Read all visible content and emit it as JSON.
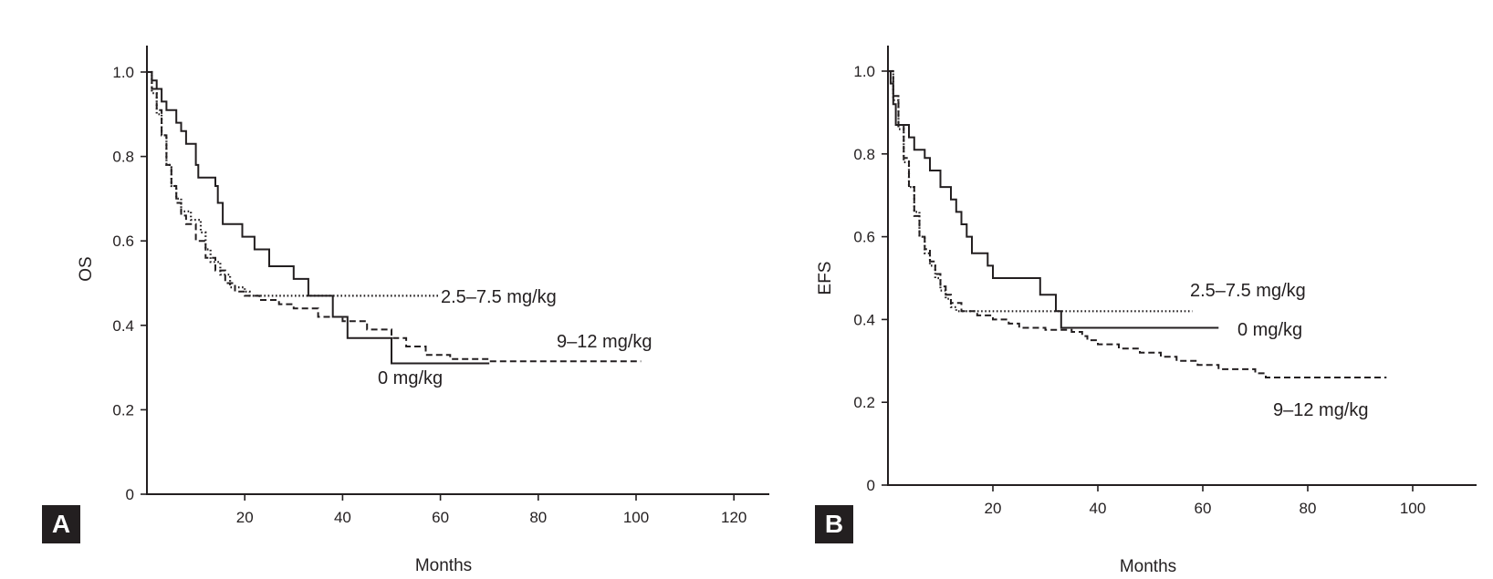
{
  "chart_data": [
    {
      "panel": "A",
      "type": "line",
      "xlabel": "Months",
      "ylabel": "OS",
      "xlim": [
        0,
        125
      ],
      "ylim": [
        0,
        1.0
      ],
      "xticks": [
        20,
        40,
        60,
        80,
        100,
        120
      ],
      "yticks": [
        0,
        0.2,
        0.4,
        0.6,
        0.8,
        1.0
      ],
      "ytick_labels": [
        "0",
        "0.2",
        "0.4",
        "0.6",
        "0.8",
        "1.0"
      ],
      "series": [
        {
          "name": "0 mg/kg",
          "style": "solid",
          "points": [
            [
              0,
              1.0
            ],
            [
              1,
              0.98
            ],
            [
              2,
              0.96
            ],
            [
              3,
              0.93
            ],
            [
              4,
              0.91
            ],
            [
              6,
              0.88
            ],
            [
              7,
              0.86
            ],
            [
              8,
              0.83
            ],
            [
              10,
              0.78
            ],
            [
              10.5,
              0.75
            ],
            [
              14,
              0.73
            ],
            [
              14.5,
              0.69
            ],
            [
              15.5,
              0.64
            ],
            [
              19.5,
              0.61
            ],
            [
              22,
              0.58
            ],
            [
              25,
              0.54
            ],
            [
              30,
              0.51
            ],
            [
              33,
              0.47
            ],
            [
              38,
              0.42
            ],
            [
              41,
              0.37
            ],
            [
              50,
              0.31
            ],
            [
              70,
              0.31
            ]
          ]
        },
        {
          "name": "2.5–7.5 mg/kg",
          "style": "dotted",
          "points": [
            [
              0,
              1.0
            ],
            [
              1,
              0.95
            ],
            [
              2,
              0.9
            ],
            [
              3,
              0.85
            ],
            [
              4,
              0.78
            ],
            [
              5,
              0.73
            ],
            [
              6,
              0.7
            ],
            [
              7,
              0.67
            ],
            [
              9,
              0.65
            ],
            [
              11,
              0.62
            ],
            [
              12,
              0.58
            ],
            [
              13,
              0.55
            ],
            [
              15,
              0.52
            ],
            [
              17,
              0.49
            ],
            [
              20,
              0.48
            ],
            [
              21,
              0.47
            ],
            [
              60,
              0.47
            ]
          ]
        },
        {
          "name": "9–12 mg/kg",
          "style": "dashed",
          "points": [
            [
              0,
              1.0
            ],
            [
              1,
              0.96
            ],
            [
              2,
              0.91
            ],
            [
              3,
              0.85
            ],
            [
              4,
              0.78
            ],
            [
              5,
              0.73
            ],
            [
              6,
              0.69
            ],
            [
              7,
              0.66
            ],
            [
              8,
              0.64
            ],
            [
              10,
              0.6
            ],
            [
              12,
              0.56
            ],
            [
              14,
              0.53
            ],
            [
              16,
              0.5
            ],
            [
              18,
              0.48
            ],
            [
              20,
              0.47
            ],
            [
              23,
              0.46
            ],
            [
              27,
              0.45
            ],
            [
              30,
              0.44
            ],
            [
              35,
              0.42
            ],
            [
              40,
              0.41
            ],
            [
              45,
              0.39
            ],
            [
              50,
              0.37
            ],
            [
              53,
              0.35
            ],
            [
              57,
              0.33
            ],
            [
              62,
              0.32
            ],
            [
              70,
              0.315
            ],
            [
              101,
              0.315
            ]
          ]
        }
      ],
      "annotations": [
        "2.5–7.5 mg/kg",
        "9–12 mg/kg",
        "0 mg/kg"
      ]
    },
    {
      "panel": "B",
      "type": "line",
      "xlabel": "Months",
      "ylabel": "EFS",
      "xlim": [
        0,
        110
      ],
      "ylim": [
        0,
        1.0
      ],
      "xticks": [
        20,
        40,
        60,
        80,
        100
      ],
      "yticks": [
        0,
        0.2,
        0.4,
        0.6,
        0.8,
        1.0
      ],
      "ytick_labels": [
        "0",
        "0.2",
        "0.4",
        "0.6",
        "0.8",
        "1.0"
      ],
      "series": [
        {
          "name": "0 mg/kg",
          "style": "solid",
          "points": [
            [
              0,
              1.0
            ],
            [
              0.5,
              0.97
            ],
            [
              1,
              0.92
            ],
            [
              1.5,
              0.87
            ],
            [
              4,
              0.84
            ],
            [
              5,
              0.81
            ],
            [
              7,
              0.79
            ],
            [
              8,
              0.76
            ],
            [
              10,
              0.72
            ],
            [
              12,
              0.69
            ],
            [
              13,
              0.66
            ],
            [
              14,
              0.63
            ],
            [
              15,
              0.6
            ],
            [
              16,
              0.56
            ],
            [
              19,
              0.53
            ],
            [
              20,
              0.5
            ],
            [
              25,
              0.5
            ],
            [
              29,
              0.46
            ],
            [
              32,
              0.42
            ],
            [
              33,
              0.38
            ],
            [
              63,
              0.38
            ]
          ]
        },
        {
          "name": "2.5–7.5 mg/kg",
          "style": "dotted",
          "points": [
            [
              0,
              1.0
            ],
            [
              1,
              0.93
            ],
            [
              2,
              0.86
            ],
            [
              3,
              0.78
            ],
            [
              4,
              0.72
            ],
            [
              5,
              0.66
            ],
            [
              6,
              0.6
            ],
            [
              7,
              0.56
            ],
            [
              8,
              0.53
            ],
            [
              9,
              0.5
            ],
            [
              10,
              0.47
            ],
            [
              11,
              0.45
            ],
            [
              12,
              0.43
            ],
            [
              13,
              0.42
            ],
            [
              58,
              0.42
            ]
          ]
        },
        {
          "name": "9–12 mg/kg",
          "style": "dashed",
          "points": [
            [
              0,
              1.0
            ],
            [
              1,
              0.94
            ],
            [
              2,
              0.87
            ],
            [
              3,
              0.79
            ],
            [
              4,
              0.72
            ],
            [
              5,
              0.65
            ],
            [
              6,
              0.6
            ],
            [
              7,
              0.57
            ],
            [
              8,
              0.54
            ],
            [
              9,
              0.51
            ],
            [
              10,
              0.48
            ],
            [
              11,
              0.46
            ],
            [
              12,
              0.44
            ],
            [
              14,
              0.42
            ],
            [
              17,
              0.41
            ],
            [
              20,
              0.4
            ],
            [
              23,
              0.39
            ],
            [
              25,
              0.38
            ],
            [
              30,
              0.375
            ],
            [
              35,
              0.37
            ],
            [
              37,
              0.36
            ],
            [
              38,
              0.35
            ],
            [
              40,
              0.34
            ],
            [
              44,
              0.33
            ],
            [
              48,
              0.32
            ],
            [
              52,
              0.31
            ],
            [
              55,
              0.3
            ],
            [
              59,
              0.29
            ],
            [
              63,
              0.28
            ],
            [
              70,
              0.27
            ],
            [
              72,
              0.26
            ],
            [
              95,
              0.26
            ]
          ]
        }
      ],
      "annotations": [
        "2.5–7.5 mg/kg",
        "0 mg/kg",
        "9–12 mg/kg"
      ]
    }
  ]
}
